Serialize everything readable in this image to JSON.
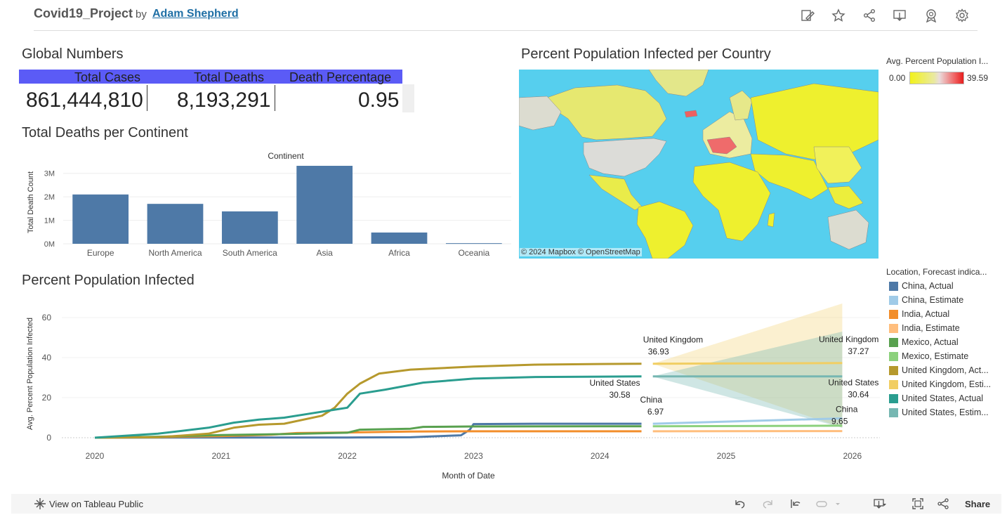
{
  "header": {
    "title": "Covid19_Project",
    "by": "by",
    "author": "Adam Shepherd",
    "icons": [
      "edit-icon",
      "star-icon",
      "share-icon",
      "download-icon",
      "badge-icon",
      "gear-icon"
    ]
  },
  "global_numbers": {
    "title": "Global Numbers",
    "header_color": "#5b5bf6",
    "columns": [
      {
        "label": "Total Cases",
        "value": "861,444,810"
      },
      {
        "label": "Total Deaths",
        "value": "8,193,291"
      },
      {
        "label": "Death Percentage",
        "value": "0.95"
      }
    ]
  },
  "deaths_per_continent": {
    "title": "Total Deaths per Continent",
    "chart_data": {
      "type": "bar",
      "title": "Continent",
      "xlabel": "",
      "ylabel": "Total Death Count",
      "categories": [
        "Europe",
        "North America",
        "South America",
        "Asia",
        "Africa",
        "Oceania"
      ],
      "values": [
        2100000,
        1700000,
        1380000,
        3320000,
        480000,
        26000
      ],
      "yticks": [
        "0M",
        "1M",
        "2M",
        "3M"
      ],
      "ylim": [
        0,
        3500000
      ],
      "color": "#4e79a7"
    }
  },
  "map": {
    "title": "Percent Population Infected per Country",
    "attribution": "© 2024 Mapbox  © OpenStreetMap",
    "ocean_color": "#56cfee",
    "legend": {
      "title": "Avg. Percent Population I...",
      "min": "0.00",
      "max": "39.59"
    }
  },
  "ppi": {
    "title": "Percent Population Infected",
    "chart_data": {
      "type": "line",
      "xlabel": "Month of Date",
      "ylabel": "Avg. Percent Population Infected",
      "xticks": [
        "2020",
        "2021",
        "2022",
        "2023",
        "2024",
        "2025",
        "2026"
      ],
      "yticks": [
        "0",
        "20",
        "40",
        "60"
      ],
      "ylim": [
        0,
        68
      ],
      "series": [
        {
          "name": "China, Actual",
          "color": "#4e79a7",
          "x": [
            2020.0,
            2021.0,
            2022.0,
            2022.5,
            2022.9,
            2022.97,
            2023.0,
            2023.5,
            2024.0,
            2024.33
          ],
          "y": [
            0,
            0.1,
            0.1,
            0.2,
            1.2,
            4.0,
            6.8,
            6.97,
            6.97,
            6.97
          ]
        },
        {
          "name": "China, Estimate",
          "color": "#a0cbe8",
          "x": [
            2024.42,
            2025.92
          ],
          "y": [
            6.97,
            9.65
          ]
        },
        {
          "name": "India, Actual",
          "color": "#f28e2b",
          "x": [
            2020.0,
            2020.5,
            2021.0,
            2021.4,
            2021.6,
            2022.0,
            2022.5,
            2023.0,
            2024.0,
            2024.33
          ],
          "y": [
            0,
            0.3,
            0.8,
            1.5,
            2.3,
            2.6,
            3.1,
            3.2,
            3.2,
            3.2
          ]
        },
        {
          "name": "India, Estimate",
          "color": "#ffbe7d",
          "x": [
            2024.42,
            2025.92
          ],
          "y": [
            3.2,
            3.3
          ]
        },
        {
          "name": "Mexico, Actual",
          "color": "#59a14f",
          "x": [
            2020.0,
            2020.5,
            2021.0,
            2021.5,
            2022.0,
            2022.1,
            2022.5,
            2022.6,
            2023.0,
            2024.0,
            2024.33
          ],
          "y": [
            0,
            0.5,
            1.3,
            1.8,
            2.5,
            4.0,
            4.5,
            5.4,
            5.6,
            5.7,
            5.7
          ]
        },
        {
          "name": "Mexico, Estimate",
          "color": "#8cd17d",
          "x": [
            2024.42,
            2025.92
          ],
          "y": [
            5.7,
            6.0
          ]
        },
        {
          "name": "United Kingdom, Actual",
          "color": "#b6992d",
          "x": [
            2020.0,
            2020.5,
            2020.9,
            2021.1,
            2021.3,
            2021.5,
            2021.8,
            2021.9,
            2022.0,
            2022.1,
            2022.25,
            2022.5,
            2023.0,
            2023.5,
            2024.0,
            2024.33
          ],
          "y": [
            0,
            0.2,
            2.0,
            5.0,
            6.5,
            7.0,
            11.0,
            15.0,
            22.0,
            27.0,
            32.0,
            34.0,
            35.5,
            36.5,
            36.8,
            36.93
          ]
        },
        {
          "name": "United Kingdom, Estimate",
          "color": "#f1ce63",
          "x": [
            2024.42,
            2025.92
          ],
          "y": [
            36.93,
            37.27
          ],
          "band_low": [
            36.9,
            5.0
          ],
          "band_high": [
            37.0,
            67.0
          ]
        },
        {
          "name": "United States, Actual",
          "color": "#2a9d8f",
          "x": [
            2020.0,
            2020.5,
            2020.9,
            2021.1,
            2021.3,
            2021.5,
            2021.7,
            2021.9,
            2022.0,
            2022.1,
            2022.3,
            2022.6,
            2023.0,
            2023.5,
            2024.0,
            2024.33
          ],
          "y": [
            0,
            2.0,
            5.0,
            7.5,
            9.0,
            10.0,
            12.0,
            14.0,
            15.0,
            22.0,
            24.0,
            27.5,
            29.5,
            30.3,
            30.5,
            30.58
          ]
        },
        {
          "name": "United States, Estimate",
          "color": "#76b7b2",
          "x": [
            2024.42,
            2025.92
          ],
          "y": [
            30.58,
            30.64
          ],
          "band_low": [
            30.5,
            5.0
          ],
          "band_high": [
            30.7,
            53.0
          ]
        }
      ],
      "annotations": [
        {
          "label": "United Kingdom",
          "value": "36.93"
        },
        {
          "label": "United Kingdom",
          "value": "37.27"
        },
        {
          "label": "United States",
          "value": "30.58"
        },
        {
          "label": "United States",
          "value": "30.64"
        },
        {
          "label": "China",
          "value": "6.97"
        },
        {
          "label": "China",
          "value": "9.65"
        }
      ]
    },
    "legend": {
      "title": "Location, Forecast indica...",
      "items": [
        {
          "label": "China, Actual",
          "color": "#4e79a7"
        },
        {
          "label": "China, Estimate",
          "color": "#a0cbe8"
        },
        {
          "label": "India, Actual",
          "color": "#f28e2b"
        },
        {
          "label": "India, Estimate",
          "color": "#ffbe7d"
        },
        {
          "label": "Mexico, Actual",
          "color": "#59a14f"
        },
        {
          "label": "Mexico, Estimate",
          "color": "#8cd17d"
        },
        {
          "label": "United Kingdom, Act...",
          "color": "#b6992d"
        },
        {
          "label": "United Kingdom, Esti...",
          "color": "#f1ce63"
        },
        {
          "label": "United States, Actual",
          "color": "#2a9d8f"
        },
        {
          "label": "United States, Estim...",
          "color": "#76b7b2"
        }
      ]
    }
  },
  "footer": {
    "view_label": "View on Tableau Public",
    "share_label": "Share"
  }
}
